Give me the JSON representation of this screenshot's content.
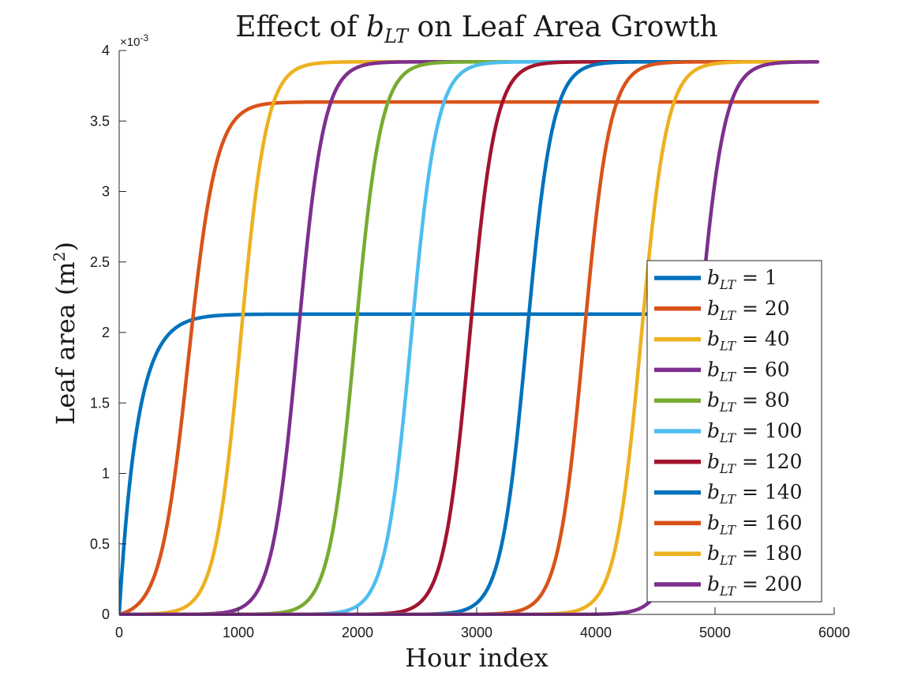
{
  "chart_data": {
    "type": "line",
    "title": {
      "prefix": "Effect of ",
      "var_main": "b",
      "var_sub": "LT",
      "suffix": " on Leaf Area Growth"
    },
    "xlabel": "Hour index",
    "ylabel": {
      "main": "Leaf area (m",
      "sup": "2",
      "close": ")"
    },
    "xlim": [
      0,
      6000
    ],
    "ylim": [
      0,
      0.004
    ],
    "x_ticks": [
      0,
      1000,
      2000,
      3000,
      4000,
      5000,
      6000
    ],
    "x_tick_labels": [
      "0",
      "1000",
      "2000",
      "3000",
      "4000",
      "5000",
      "6000"
    ],
    "y_ticks": [
      0,
      0.0005,
      0.001,
      0.0015,
      0.002,
      0.0025,
      0.003,
      0.0035,
      0.004
    ],
    "y_tick_labels": [
      "0",
      "0.5",
      "1",
      "1.5",
      "2",
      "2.5",
      "3",
      "3.5",
      "4"
    ],
    "y_exponent": {
      "base": "×10",
      "power": "-3"
    },
    "x_max_data": 5860,
    "grid": false,
    "legend_position": "lower-right",
    "legend_symbol": {
      "main": "b",
      "sub": "LT",
      "eq": " = "
    },
    "series": [
      {
        "name": "1",
        "color": "#0072BD",
        "shape": "exp",
        "max": 0.00213,
        "rate": 0.0065
      },
      {
        "name": "20",
        "color": "#D95319",
        "shape": "logistic",
        "max": 0.003635,
        "mid": 580,
        "k": 0.0085
      },
      {
        "name": "40",
        "color": "#EDB120",
        "shape": "logistic",
        "max": 0.00392,
        "mid": 1020,
        "k": 0.0092
      },
      {
        "name": "60",
        "color": "#7E2F8E",
        "shape": "logistic",
        "max": 0.00392,
        "mid": 1500,
        "k": 0.0092
      },
      {
        "name": "80",
        "color": "#77AC30",
        "shape": "logistic",
        "max": 0.00392,
        "mid": 1980,
        "k": 0.0092
      },
      {
        "name": "100",
        "color": "#4DBEEE",
        "shape": "logistic",
        "max": 0.00392,
        "mid": 2450,
        "k": 0.0092
      },
      {
        "name": "120",
        "color": "#A2142F",
        "shape": "logistic",
        "max": 0.00392,
        "mid": 2940,
        "k": 0.0092
      },
      {
        "name": "140",
        "color": "#0072BD",
        "shape": "logistic",
        "max": 0.00392,
        "mid": 3420,
        "k": 0.0092
      },
      {
        "name": "160",
        "color": "#D95319",
        "shape": "logistic",
        "max": 0.00392,
        "mid": 3900,
        "k": 0.0092
      },
      {
        "name": "180",
        "color": "#EDB120",
        "shape": "logistic",
        "max": 0.00392,
        "mid": 4380,
        "k": 0.0092
      },
      {
        "name": "200",
        "color": "#7E2F8E",
        "shape": "logistic",
        "max": 0.00392,
        "mid": 4860,
        "k": 0.0092
      }
    ]
  }
}
